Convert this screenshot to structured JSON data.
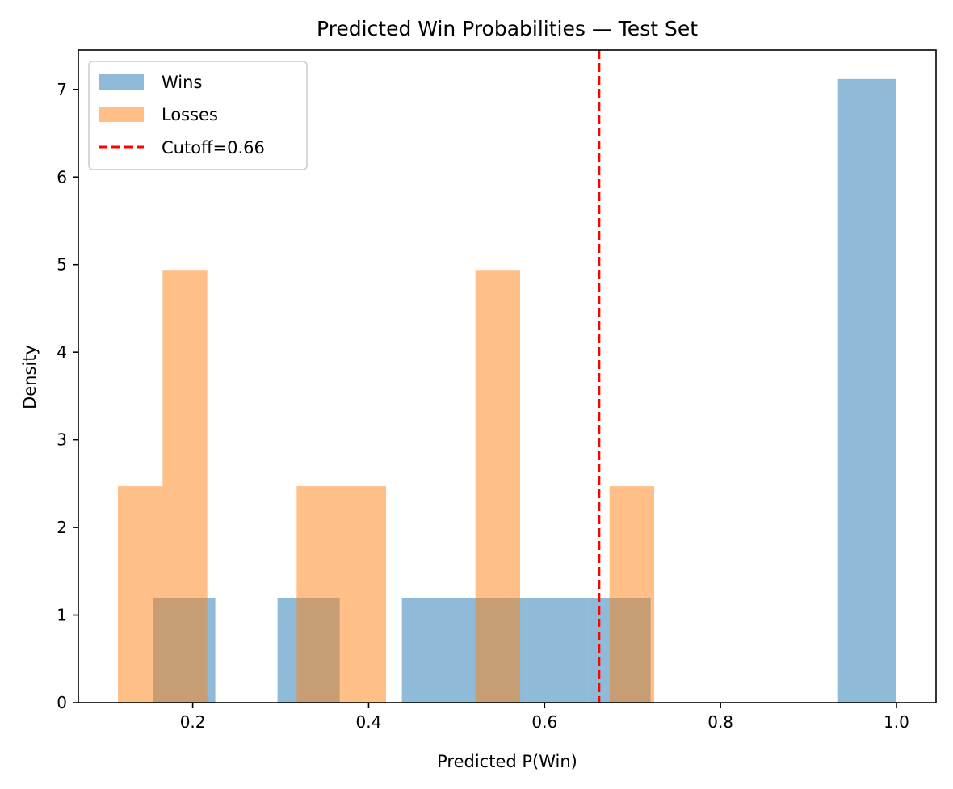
{
  "chart_data": {
    "type": "histogram",
    "title": "Predicted Win Probabilities — Test Set",
    "xlabel": "Predicted P(Win)",
    "ylabel": "Density",
    "xlim": [
      0.07,
      1.045
    ],
    "ylim": [
      0,
      7.45
    ],
    "x_ticks": [
      "0.2",
      "0.4",
      "0.6",
      "0.8",
      "1.0"
    ],
    "y_ticks": [
      "0",
      "1",
      "2",
      "3",
      "4",
      "5",
      "6",
      "7"
    ],
    "grid": false,
    "legend": "upper-left",
    "series": [
      {
        "name": "Wins",
        "color": "#1f77b4",
        "opacity": 0.5,
        "bin_edges": [
          0.155,
          0.2257,
          0.2964,
          0.3671,
          0.4378,
          0.5085,
          0.5792,
          0.6499,
          0.7206,
          0.7913,
          0.862,
          0.9327,
          1.0
        ],
        "values": [
          1.19,
          0,
          1.19,
          0,
          1.19,
          1.19,
          1.19,
          1.19,
          0,
          0,
          0,
          7.12
        ]
      },
      {
        "name": "Losses",
        "color": "#ff7f0e",
        "opacity": 0.5,
        "bin_edges": [
          0.115,
          0.1658,
          0.2166,
          0.2674,
          0.3182,
          0.369,
          0.4198,
          0.4706,
          0.5214,
          0.5722,
          0.623,
          0.6738,
          0.7246
        ],
        "values": [
          2.47,
          4.94,
          0,
          0,
          2.47,
          2.47,
          0,
          0,
          4.94,
          0,
          0,
          2.47
        ]
      }
    ],
    "cutoff": {
      "name": "Cutoff=0.66",
      "value": 0.662,
      "color": "#ff0000",
      "style": "dashed"
    }
  }
}
